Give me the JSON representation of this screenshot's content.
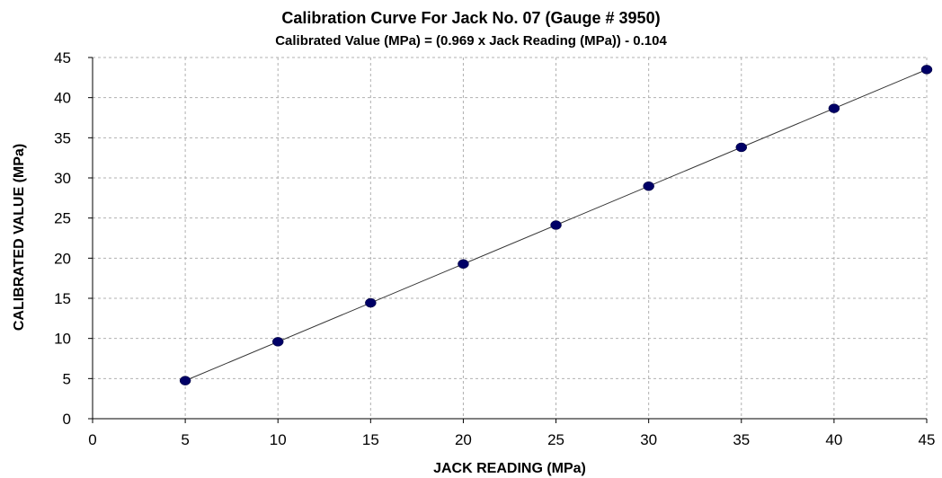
{
  "chart_data": {
    "type": "scatter",
    "title": "Calibration Curve For Jack No. 07 (Gauge # 3950)",
    "subtitle": "Calibrated Value (MPa) = (0.969 x Jack Reading (MPa)) - 0.104",
    "xlabel": "JACK READING (MPa)",
    "ylabel": "CALIBRATED VALUE  (MPa)",
    "xlim": [
      0,
      45
    ],
    "ylim": [
      0,
      45
    ],
    "xticks": [
      0,
      5,
      10,
      15,
      20,
      25,
      30,
      35,
      40,
      45
    ],
    "yticks": [
      0,
      5,
      10,
      15,
      20,
      25,
      30,
      35,
      40,
      45
    ],
    "grid": true,
    "trendline": {
      "slope": 0.969,
      "intercept": -0.104
    },
    "series": [
      {
        "color": "#000066",
        "x": [
          5,
          10,
          15,
          20,
          25,
          30,
          35,
          40,
          45
        ],
        "y": [
          4.74,
          9.59,
          14.43,
          19.28,
          24.12,
          28.97,
          33.81,
          38.66,
          43.5
        ]
      }
    ]
  }
}
